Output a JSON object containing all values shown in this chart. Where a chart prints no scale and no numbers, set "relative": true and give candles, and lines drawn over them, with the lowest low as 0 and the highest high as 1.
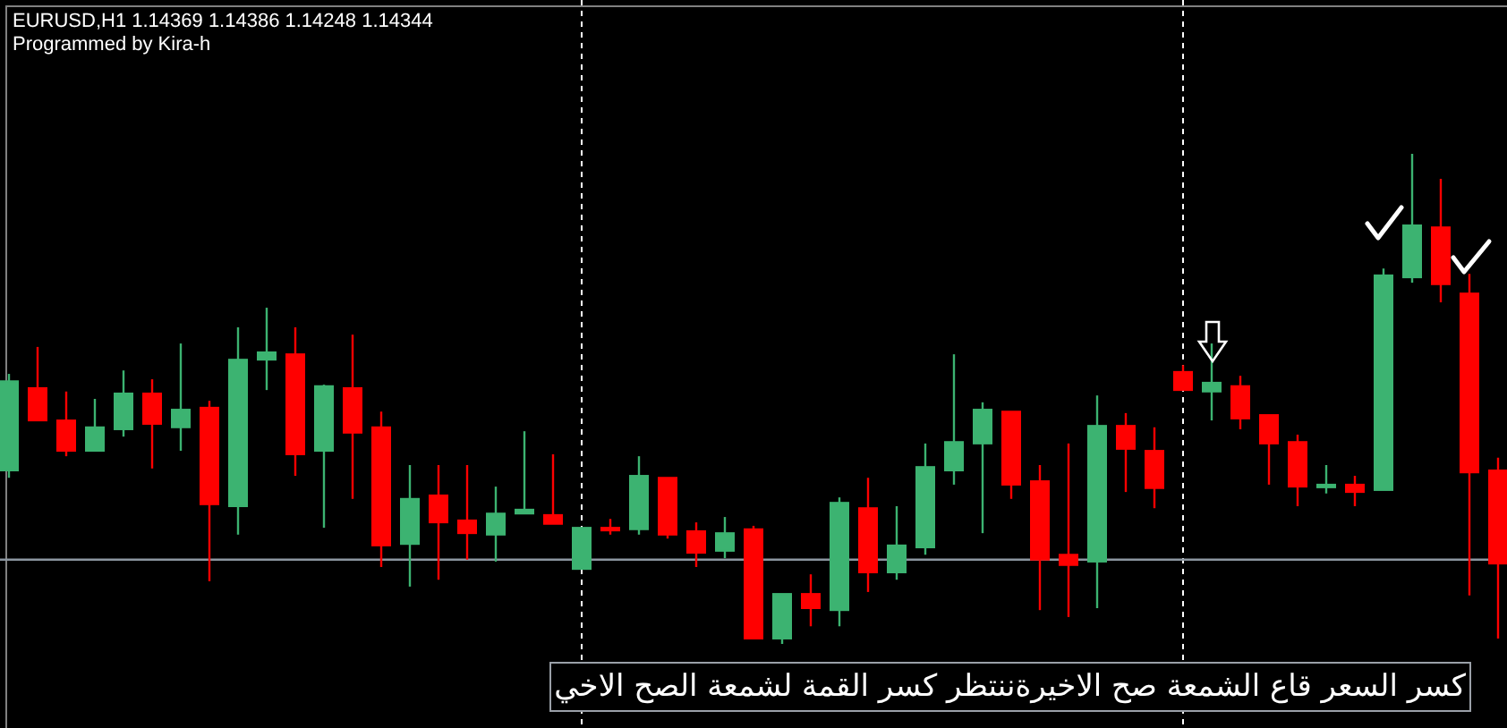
{
  "chart_data": {
    "type": "candlestick",
    "title": "EURUSD,H1  1.14369 1.14386 1.14248 1.14344",
    "subtitle": "Programmed by Kira-h",
    "annotations": [
      "كسر السعر قاع الشمعة صح الاخيرةننتظر كسر القمة لشمعة الصح الاخي"
    ],
    "relative": true,
    "categories": [
      null,
      null,
      null,
      null,
      null,
      null,
      null,
      null,
      null,
      null,
      null,
      null,
      null,
      null,
      null,
      null,
      null,
      null,
      null,
      null,
      null,
      null,
      null,
      null,
      null,
      null,
      null,
      null,
      null,
      null,
      null,
      null,
      null,
      null,
      null,
      null,
      null,
      null,
      null,
      null,
      null,
      null,
      null,
      null,
      null,
      null,
      null,
      null,
      null,
      null,
      null,
      null,
      null
    ],
    "ohlc": [
      [
        0.354,
        0.551,
        0.339,
        0.536
      ],
      [
        0.522,
        0.606,
        0.456,
        0.456
      ],
      [
        0.456,
        0.515,
        0.383,
        0.394
      ],
      [
        0.394,
        0.5,
        0.394,
        0.442
      ],
      [
        0.438,
        0.558,
        0.423,
        0.511
      ],
      [
        0.511,
        0.54,
        0.358,
        0.449
      ],
      [
        0.442,
        0.613,
        0.394,
        0.478
      ],
      [
        0.482,
        0.496,
        0.128,
        0.285
      ],
      [
        0.281,
        0.646,
        0.223,
        0.58
      ],
      [
        0.58,
        0.686,
        0.518,
        0.595
      ],
      [
        0.591,
        0.646,
        0.343,
        0.387
      ],
      [
        0.394,
        0.529,
        0.237,
        0.526
      ],
      [
        0.522,
        0.631,
        0.296,
        0.431
      ],
      [
        0.442,
        0.474,
        0.157,
        0.201
      ],
      [
        0.204,
        0.365,
        0.117,
        0.296
      ],
      [
        0.303,
        0.365,
        0.131,
        0.248
      ],
      [
        0.252,
        0.365,
        0.172,
        0.226
      ],
      [
        0.223,
        0.321,
        0.168,
        0.266
      ],
      [
        0.266,
        0.434,
        0.266,
        0.274
      ],
      [
        0.263,
        0.387,
        0.245,
        0.245
      ],
      [
        0.153,
        0.237,
        0.153,
        0.237
      ],
      [
        0.237,
        0.255,
        0.223,
        0.234
      ],
      [
        0.234,
        0.383,
        0.223,
        0.343
      ],
      [
        0.339,
        0.339,
        0.215,
        0.223
      ],
      [
        0.23,
        0.248,
        0.157,
        0.186
      ],
      [
        0.19,
        0.259,
        0.175,
        0.226
      ],
      [
        0.234,
        0.241,
        0.011,
        0.011
      ],
      [
        0.011,
        0.102,
        0,
        0.102
      ],
      [
        0.102,
        0.142,
        0.036,
        0.073
      ],
      [
        0.069,
        0.299,
        0.036,
        0.288
      ],
      [
        0.277,
        0.339,
        0.106,
        0.146
      ],
      [
        0.146,
        0.281,
        0.131,
        0.201
      ],
      [
        0.197,
        0.409,
        0.182,
        0.361
      ],
      [
        0.354,
        0.591,
        0.325,
        0.412
      ],
      [
        0.409,
        0.493,
        0.226,
        0.478
      ],
      [
        0.474,
        0.474,
        0.296,
        0.325
      ],
      [
        0.332,
        0.365,
        0.069,
        0.172
      ],
      [
        0.182,
        0.409,
        0.055,
        0.161
      ],
      [
        0.168,
        0.507,
        0.073,
        0.445
      ],
      [
        0.445,
        0.471,
        0.31,
        0.398
      ],
      [
        0.394,
        0.442,
        0.277,
        0.318
      ],
      [
        0.555,
        0.569,
        0.518,
        0.518
      ],
      [
        0.515,
        0.613,
        0.456,
        0.533
      ],
      [
        0.526,
        0.547,
        0.438,
        0.46
      ],
      [
        0.467,
        0.467,
        0.325,
        0.409
      ],
      [
        0.412,
        0.427,
        0.281,
        0.321
      ],
      [
        0.325,
        0.365,
        0.307,
        0.325
      ],
      [
        0.325,
        0.343,
        0.281,
        0.31
      ],
      [
        0.314,
        0.766,
        0.314,
        0.752
      ],
      [
        0.748,
        1,
        0.737,
        0.854
      ],
      [
        0.85,
        0.949,
        0.697,
        0.734
      ],
      [
        0.715,
        0.755,
        0.099,
        0.35
      ],
      [
        0.354,
        0.38,
        0.011,
        0.164
      ]
    ],
    "colors": [
      "#3cb371",
      "#ff0000",
      "#ff0000",
      "#3cb371",
      "#3cb371",
      "#ff0000",
      "#3cb371",
      "#ff0000",
      "#3cb371",
      "#3cb371",
      "#ff0000",
      "#3cb371",
      "#ff0000",
      "#ff0000",
      "#3cb371",
      "#ff0000",
      "#ff0000",
      "#3cb371",
      "#3cb371",
      "#ff0000",
      "#3cb371",
      "#ff0000",
      "#3cb371",
      "#ff0000",
      "#ff0000",
      "#3cb371",
      "#ff0000",
      "#3cb371",
      "#ff0000",
      "#3cb371",
      "#ff0000",
      "#3cb371",
      "#3cb371",
      "#3cb371",
      "#3cb371",
      "#ff0000",
      "#ff0000",
      "#ff0000",
      "#3cb371",
      "#ff0000",
      "#ff0000",
      "#ff0000",
      "#3cb371",
      "#ff0000",
      "#ff0000",
      "#ff0000",
      "#3cb371",
      "#ff0000",
      "#3cb371",
      "#3cb371",
      "#ff0000",
      "#ff0000",
      "#ff0000"
    ],
    "ref_lines": [
      {
        "axis": "y",
        "value": 0.172,
        "color": "#8c96a0"
      }
    ]
  }
}
